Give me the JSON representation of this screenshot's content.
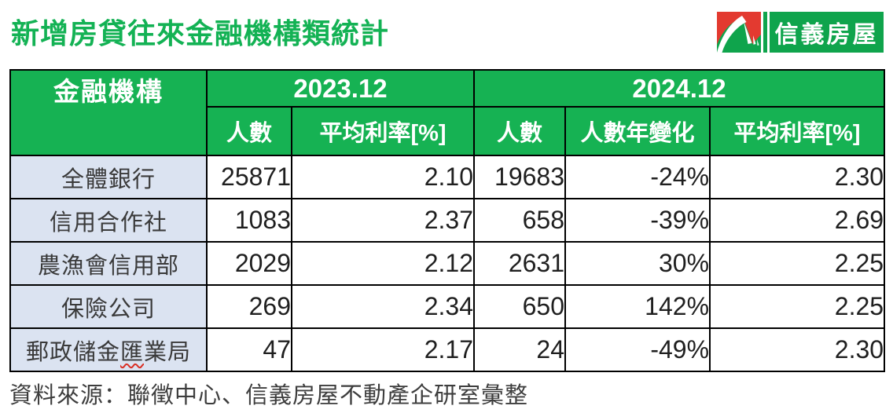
{
  "title": "新增房貸往來金融機構類統計",
  "logo": {
    "brand": "信義房屋",
    "icon": "sinyi-roof-logo",
    "red": "#E33A30",
    "green": "#0FA44C"
  },
  "table": {
    "corner_header": "金融機構",
    "groups": [
      {
        "label": "2023.12",
        "subcolumns": [
          "人數",
          "平均利率[%]"
        ]
      },
      {
        "label": "2024.12",
        "subcolumns": [
          "人數",
          "人數年變化",
          "平均利率[%]"
        ]
      }
    ],
    "row_keys": [
      "institution",
      "count_2023",
      "rate_2023",
      "count_2024",
      "yoy_change",
      "rate_2024"
    ],
    "rows": [
      {
        "institution": "全體銀行",
        "count_2023": "25871",
        "rate_2023": "2.10",
        "count_2024": "19683",
        "yoy_change": "-24%",
        "rate_2024": "2.30"
      },
      {
        "institution": "信用合作社",
        "count_2023": "1083",
        "rate_2023": "2.37",
        "count_2024": "658",
        "yoy_change": "-39%",
        "rate_2024": "2.69"
      },
      {
        "institution": "農漁會信用部",
        "count_2023": "2029",
        "rate_2023": "2.12",
        "count_2024": "2631",
        "yoy_change": "30%",
        "rate_2024": "2.25"
      },
      {
        "institution": "保險公司",
        "count_2023": "269",
        "rate_2023": "2.34",
        "count_2024": "650",
        "yoy_change": "142%",
        "rate_2024": "2.25"
      },
      {
        "institution": "郵政儲金匯業局",
        "wavy_char": "匯",
        "count_2023": "47",
        "rate_2023": "2.17",
        "count_2024": "24",
        "yoy_change": "-49%",
        "rate_2024": "2.30"
      }
    ]
  },
  "source": "資料來源：聯徵中心、信義房屋不動產企研室彙整",
  "colors": {
    "header_green": "#16B253",
    "title_green": "#13B254",
    "logo_green": "#0FA44C",
    "logo_red": "#E33A30",
    "row_label_bg": "#DBE3F1",
    "border": "#000000",
    "spellcheck_red": "#D93025"
  },
  "chart_data": {
    "type": "table",
    "title": "新增房貸往來金融機構類統計",
    "columns": [
      "金融機構",
      "2023.12 人數",
      "2023.12 平均利率[%]",
      "2024.12 人數",
      "2024.12 人數年變化",
      "2024.12 平均利率[%]"
    ],
    "rows": [
      [
        "全體銀行",
        25871,
        2.1,
        19683,
        "-24%",
        2.3
      ],
      [
        "信用合作社",
        1083,
        2.37,
        658,
        "-39%",
        2.69
      ],
      [
        "農漁會信用部",
        2029,
        2.12,
        2631,
        "30%",
        2.25
      ],
      [
        "保險公司",
        269,
        2.34,
        650,
        "142%",
        2.25
      ],
      [
        "郵政儲金匯業局",
        47,
        2.17,
        24,
        "-49%",
        2.3
      ]
    ],
    "source": "資料來源：聯徵中心、信義房屋不動產企研室彙整"
  }
}
